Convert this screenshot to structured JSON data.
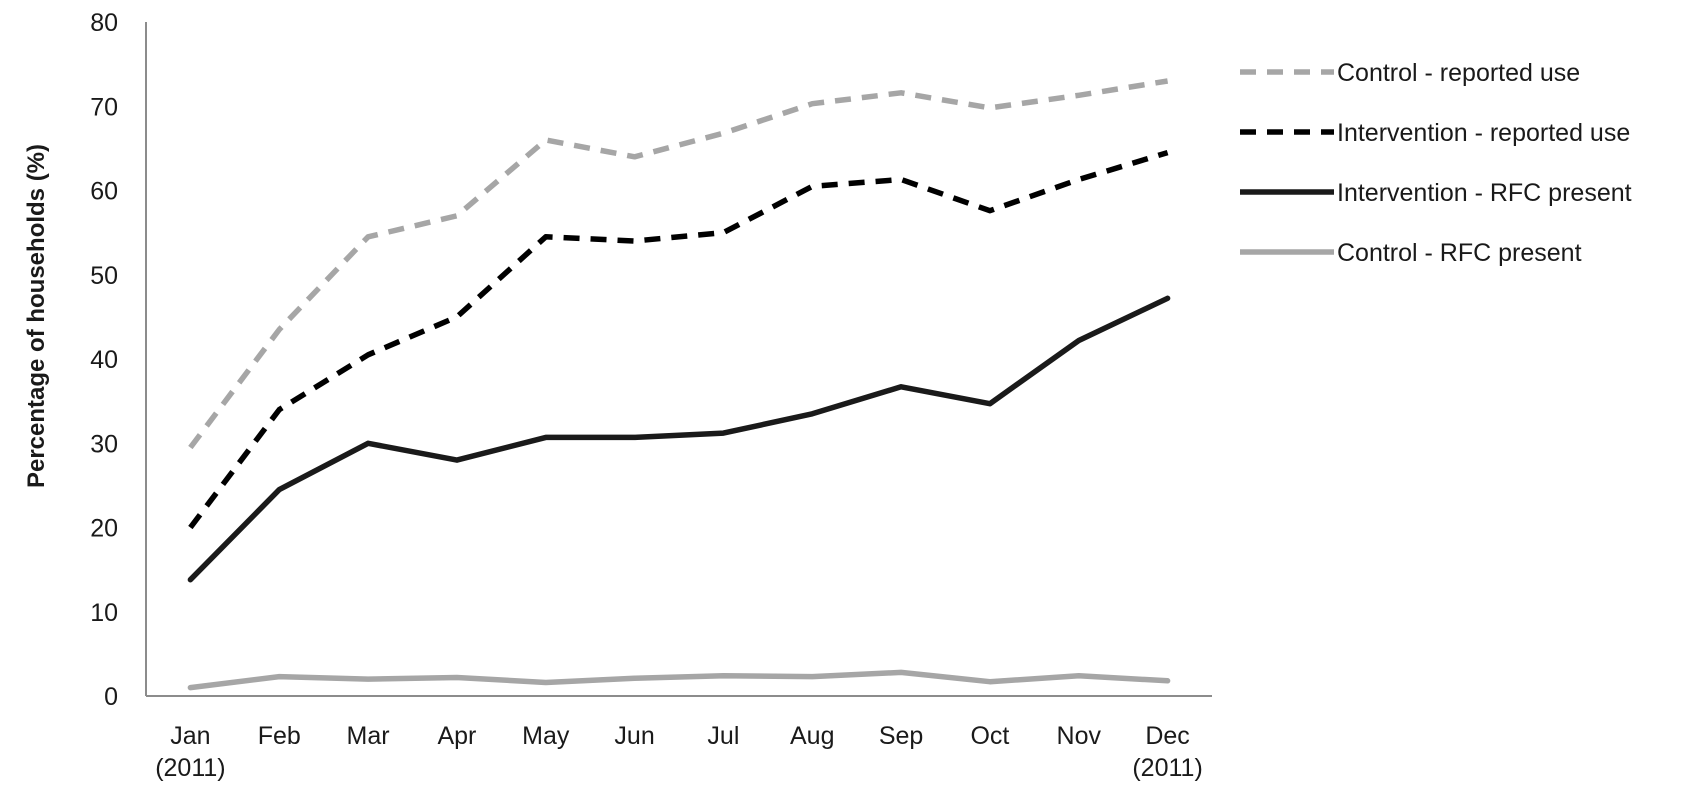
{
  "chart_data": {
    "type": "line",
    "title": "",
    "xlabel": "",
    "ylabel": "Percentage of households (%)",
    "ylim": [
      0,
      80
    ],
    "yticks": [
      0,
      10,
      20,
      30,
      40,
      50,
      60,
      70,
      80
    ],
    "categories": [
      [
        "Jan",
        "(2011)"
      ],
      [
        "Feb"
      ],
      [
        "Mar"
      ],
      [
        "Apr"
      ],
      [
        "May"
      ],
      [
        "Jun"
      ],
      [
        "Jul"
      ],
      [
        "Aug"
      ],
      [
        "Sep"
      ],
      [
        "Oct"
      ],
      [
        "Nov"
      ],
      [
        "Dec",
        "(2011)"
      ]
    ],
    "grid": false,
    "legend_position": "right",
    "series": [
      {
        "name": "Control - reported use",
        "color": "#a6a6a6",
        "dash": "dashed",
        "values": [
          29.5,
          43.5,
          54.5,
          57,
          66,
          64,
          66.8,
          70.3,
          71.6,
          69.8,
          71.3,
          73
        ]
      },
      {
        "name": "Intervention - reported use",
        "color": "#000000",
        "dash": "dashed",
        "values": [
          20,
          34,
          40.5,
          45,
          54.5,
          54,
          55,
          60.5,
          61.3,
          57.6,
          61.3,
          64.5
        ]
      },
      {
        "name": "Intervention - RFC present",
        "color": "#1a1a1a",
        "dash": "solid",
        "values": [
          13.8,
          24.5,
          30,
          28,
          30.7,
          30.7,
          31.2,
          33.5,
          36.7,
          34.7,
          42.2,
          47.2
        ]
      },
      {
        "name": "Control - RFC present",
        "color": "#a6a6a6",
        "dash": "solid",
        "values": [
          1,
          2.3,
          2,
          2.2,
          1.6,
          2.1,
          2.4,
          2.3,
          2.8,
          1.7,
          2.4,
          1.8
        ]
      }
    ]
  }
}
